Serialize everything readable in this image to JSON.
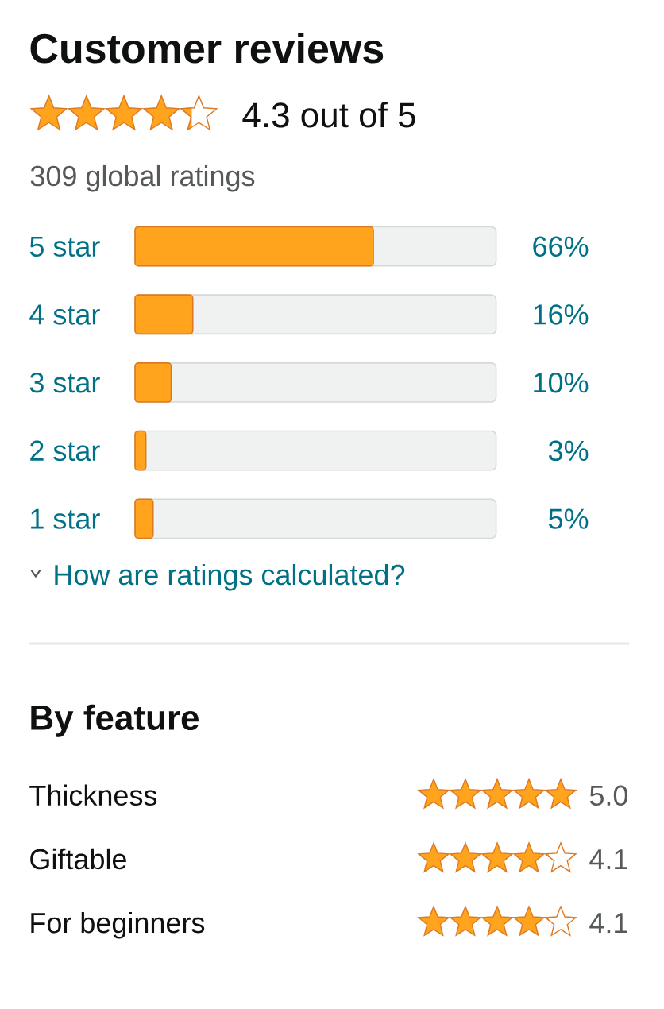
{
  "chart_data": [
    {
      "type": "other",
      "title": "Customer reviews",
      "values": [
        4.3
      ],
      "value_labels": [
        "4.3 out of 5"
      ],
      "color": "#ffa41c",
      "annotations": [
        "309 global ratings"
      ]
    },
    {
      "type": "bar",
      "orientation": "horizontal",
      "categories": [
        "5 star",
        "4 star",
        "3 star",
        "2 star",
        "1 star"
      ],
      "values": [
        66,
        16,
        10,
        3,
        5
      ],
      "value_labels": [
        "66%",
        "16%",
        "10%",
        "3%",
        "5%"
      ],
      "color": "#ffa41c",
      "xlim": [
        0,
        100
      ],
      "tick_labels": "y",
      "annotations": [
        "How are ratings calculated?"
      ]
    },
    {
      "type": "other",
      "title": "By feature",
      "categories": [
        "Thickness",
        "Giftable",
        "For beginners"
      ],
      "values": [
        5.0,
        4.1,
        4.1
      ],
      "value_labels": [
        "5.0",
        "4.1",
        "4.1"
      ],
      "color": "#ffa41c"
    }
  ]
}
